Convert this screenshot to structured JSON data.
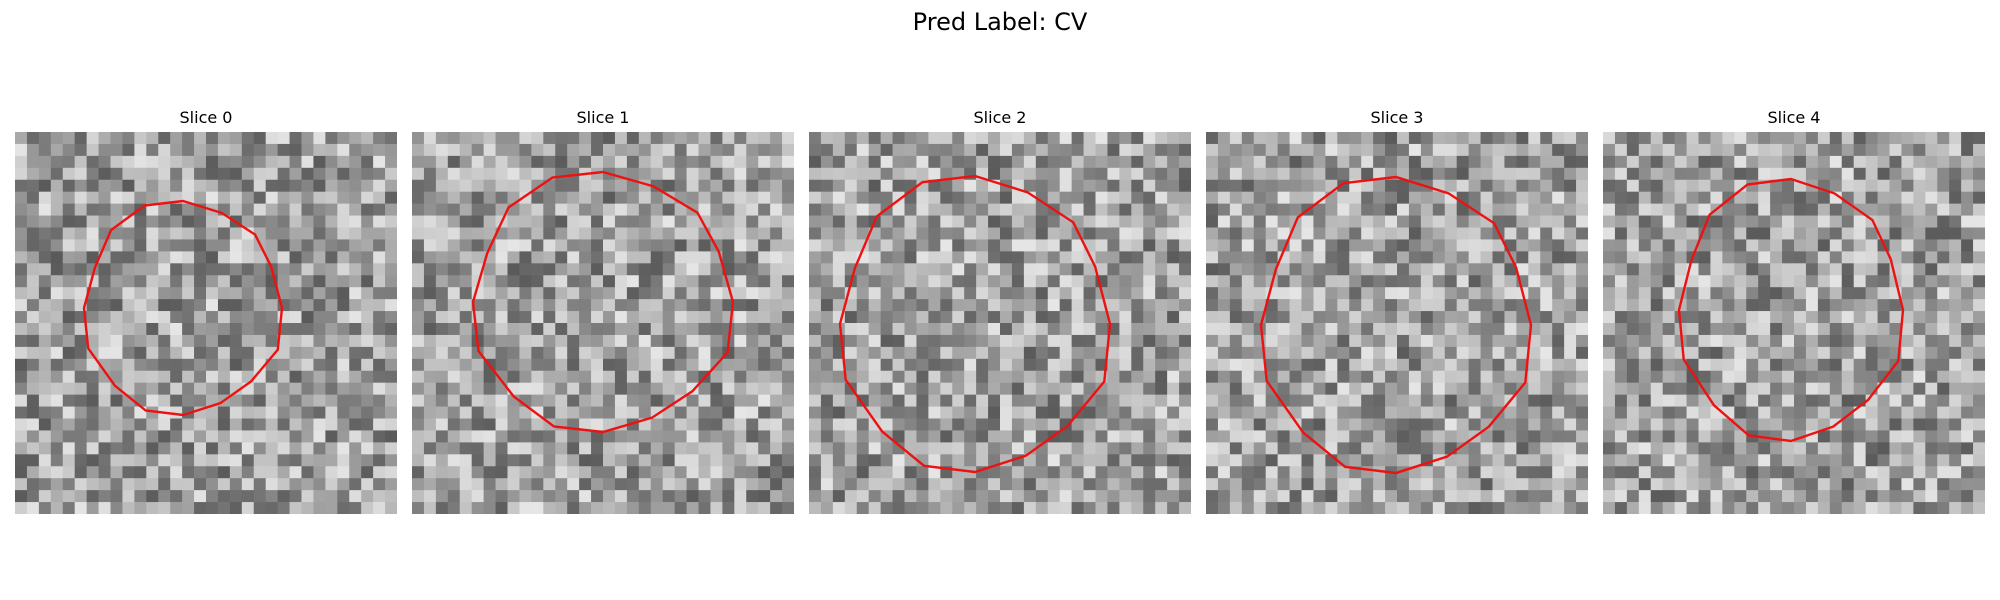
{
  "suptitle": "Pred Label: CV",
  "outline_color": "#ee1111",
  "panels": [
    {
      "title": "Slice 0"
    },
    {
      "title": "Slice 1"
    },
    {
      "title": "Slice 2"
    },
    {
      "title": "Slice 3"
    },
    {
      "title": "Slice 4"
    }
  ]
}
